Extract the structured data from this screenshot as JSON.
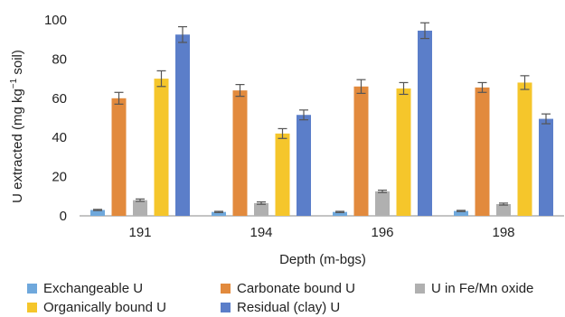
{
  "chart_data": {
    "type": "bar",
    "xlabel": "Depth (m-bgs)",
    "ylabel_parts": [
      "U extracted (mg kg",
      "−1",
      " soil)"
    ],
    "ylim": [
      0,
      100
    ],
    "yticks": [
      0,
      20,
      40,
      60,
      80,
      100
    ],
    "grid": false,
    "legend_position": "bottom",
    "categories": [
      "191",
      "194",
      "196",
      "198"
    ],
    "series": [
      {
        "name": "Exchangeable U",
        "color": "#6fa8dc",
        "values": [
          3,
          2,
          2,
          2.5
        ],
        "errors": [
          0.3,
          0.3,
          0.3,
          0.3
        ]
      },
      {
        "name": "Carbonate bound U",
        "color": "#e28a3d",
        "values": [
          60,
          64,
          66,
          65.5
        ],
        "errors": [
          3,
          3,
          3.5,
          2.5
        ]
      },
      {
        "name": "U in Fe/Mn oxide",
        "color": "#b0b0b0",
        "values": [
          8,
          6.5,
          12.5,
          6
        ],
        "errors": [
          0.6,
          0.6,
          0.6,
          0.5
        ]
      },
      {
        "name": "Organically bound U",
        "color": "#f5c62b",
        "values": [
          70,
          42,
          65,
          68
        ],
        "errors": [
          4,
          2.5,
          3,
          3.5
        ]
      },
      {
        "name": "Residual (clay) U",
        "color": "#5b7ec9",
        "values": [
          92.5,
          51.5,
          94.5,
          49.5
        ],
        "errors": [
          4,
          2.5,
          4,
          2.5
        ]
      }
    ]
  }
}
